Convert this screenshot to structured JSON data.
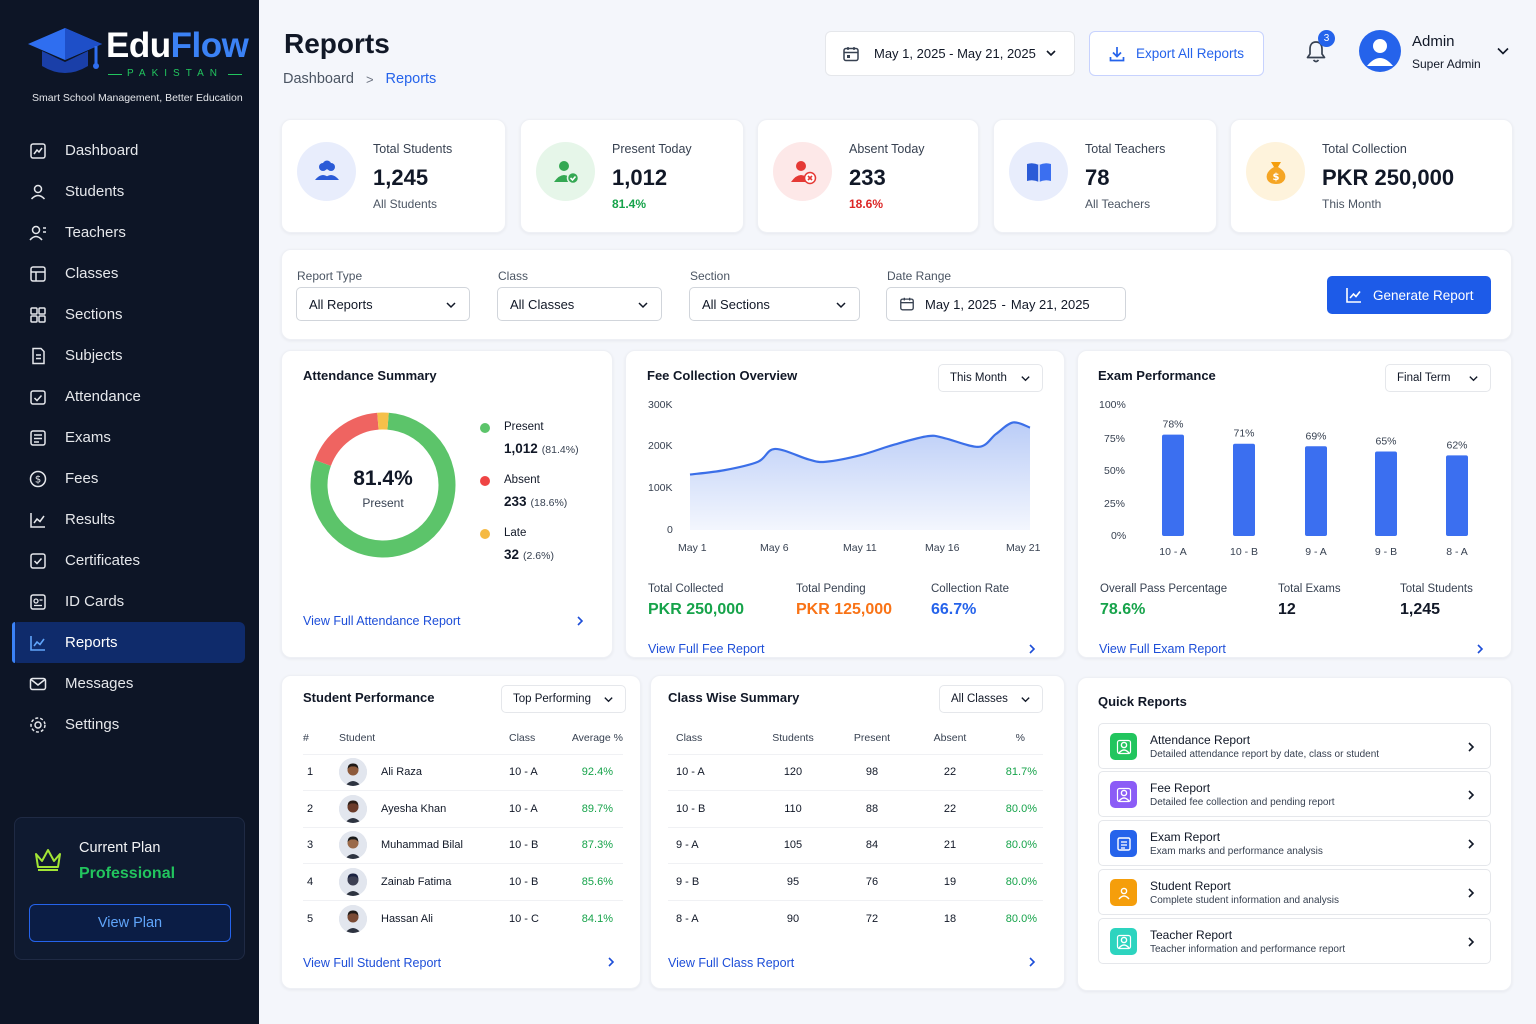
{
  "brand": {
    "name_part1": "Edu",
    "name_part2": "Flow",
    "country": "PAKISTAN",
    "tagline": "Smart School Management, Better Education"
  },
  "sidebar": {
    "items": [
      {
        "label": "Dashboard",
        "icon": "dashboard-icon"
      },
      {
        "label": "Students",
        "icon": "students-icon"
      },
      {
        "label": "Teachers",
        "icon": "teachers-icon"
      },
      {
        "label": "Classes",
        "icon": "classes-icon"
      },
      {
        "label": "Sections",
        "icon": "sections-icon"
      },
      {
        "label": "Subjects",
        "icon": "subjects-icon"
      },
      {
        "label": "Attendance",
        "icon": "attendance-icon"
      },
      {
        "label": "Exams",
        "icon": "exams-icon"
      },
      {
        "label": "Fees",
        "icon": "fees-icon"
      },
      {
        "label": "Results",
        "icon": "results-icon"
      },
      {
        "label": "Certificates",
        "icon": "certificates-icon"
      },
      {
        "label": "ID Cards",
        "icon": "id-cards-icon"
      },
      {
        "label": "Reports",
        "icon": "reports-icon",
        "active": true
      },
      {
        "label": "Messages",
        "icon": "messages-icon"
      },
      {
        "label": "Settings",
        "icon": "settings-icon"
      }
    ],
    "plan": {
      "title": "Current Plan",
      "name": "Professional",
      "button": "View Plan"
    }
  },
  "header": {
    "title": "Reports",
    "breadcrumb": {
      "home": "Dashboard",
      "current": "Reports"
    },
    "date_range": "May 1, 2025 - May 21, 2025",
    "export_label": "Export All Reports",
    "notification_count": "3",
    "user": {
      "name": "Admin",
      "role": "Super Admin"
    }
  },
  "stats": [
    {
      "label": "Total Students",
      "value": "1,245",
      "sub": "All Students",
      "color": "#2563eb"
    },
    {
      "label": "Present Today",
      "value": "1,012",
      "sub": "81.4%",
      "color": "#22c55e"
    },
    {
      "label": "Absent Today",
      "value": "233",
      "sub": "18.6%",
      "color": "#ef4444"
    },
    {
      "label": "Total Teachers",
      "value": "78",
      "sub": "All Teachers",
      "color": "#2563eb"
    },
    {
      "label": "Total Collection",
      "value": "PKR 250,000",
      "sub": "This Month",
      "color": "#f59e0b"
    }
  ],
  "filters": {
    "report_type": {
      "label": "Report Type",
      "value": "All Reports"
    },
    "class": {
      "label": "Class",
      "value": "All Classes"
    },
    "section": {
      "label": "Section",
      "value": "All Sections"
    },
    "date_range": {
      "label": "Date Range",
      "start": "May 1, 2025",
      "sep": "-",
      "end": "May 21, 2025"
    },
    "generate_label": "Generate Report"
  },
  "attendance": {
    "title": "Attendance Summary",
    "center_value": "81.4%",
    "center_label": "Present",
    "legend": [
      {
        "name": "Present",
        "value": "1,012",
        "pct": "(81.4%)",
        "color": "#5cc46a"
      },
      {
        "name": "Absent",
        "value": "233",
        "pct": "(18.6%)",
        "color": "#ef4444"
      },
      {
        "name": "Late",
        "value": "32",
        "pct": "(2.6%)",
        "color": "#f5b942"
      }
    ],
    "link": "View Full Attendance Report"
  },
  "fee": {
    "title": "Fee Collection Overview",
    "period": "This Month",
    "yticks": [
      "300K",
      "200K",
      "100K",
      "0"
    ],
    "xticks": [
      "May 1",
      "May 6",
      "May 11",
      "May 16",
      "May 21"
    ],
    "metrics": [
      {
        "label": "Total Collected",
        "value": "PKR 250,000",
        "color": "#16a34a"
      },
      {
        "label": "Total Pending",
        "value": "PKR 125,000",
        "color": "#f97316"
      },
      {
        "label": "Collection Rate",
        "value": "66.7%",
        "color": "#2563eb"
      }
    ],
    "link": "View Full Fee Report"
  },
  "exam": {
    "title": "Exam Performance",
    "term": "Final Term",
    "yticks": [
      "100%",
      "75%",
      "50%",
      "25%",
      "0%"
    ],
    "metrics": [
      {
        "label": "Overall Pass Percentage",
        "value": "78.6%",
        "color": "#16a34a"
      },
      {
        "label": "Total Exams",
        "value": "12",
        "color": "#111827"
      },
      {
        "label": "Total Students",
        "value": "1,245",
        "color": "#111827"
      }
    ],
    "link": "View Full Exam Report"
  },
  "student_perf": {
    "title": "Student Performance",
    "filter": "Top Performing",
    "headers": [
      "#",
      "Student",
      "Class",
      "Average %"
    ],
    "rows": [
      {
        "n": "1",
        "name": "Ali Raza",
        "cls": "10 - A",
        "avg": "92.4%"
      },
      {
        "n": "2",
        "name": "Ayesha Khan",
        "cls": "10 - A",
        "avg": "89.7%"
      },
      {
        "n": "3",
        "name": "Muhammad Bilal",
        "cls": "10 - B",
        "avg": "87.3%"
      },
      {
        "n": "4",
        "name": "Zainab Fatima",
        "cls": "10 - B",
        "avg": "85.6%"
      },
      {
        "n": "5",
        "name": "Hassan Ali",
        "cls": "10 - C",
        "avg": "84.1%"
      }
    ],
    "link": "View Full Student Report"
  },
  "class_summary": {
    "title": "Class Wise Summary",
    "filter": "All Classes",
    "headers": [
      "Class",
      "Students",
      "Present",
      "Absent",
      "%"
    ],
    "rows": [
      {
        "cls": "10 - A",
        "students": "120",
        "present": "98",
        "absent": "22",
        "pct": "81.7%"
      },
      {
        "cls": "10 - B",
        "students": "110",
        "present": "88",
        "absent": "22",
        "pct": "80.0%"
      },
      {
        "cls": "9 - A",
        "students": "105",
        "present": "84",
        "absent": "21",
        "pct": "80.0%"
      },
      {
        "cls": "9 - B",
        "students": "95",
        "present": "76",
        "absent": "19",
        "pct": "80.0%"
      },
      {
        "cls": "8 - A",
        "students": "90",
        "present": "72",
        "absent": "18",
        "pct": "80.0%"
      }
    ],
    "link": "View Full Class Report"
  },
  "quick_reports": {
    "title": "Quick Reports",
    "items": [
      {
        "title": "Attendance Report",
        "desc": "Detailed attendance report by date, class or student",
        "color": "#22c55e",
        "icon": "attendance-report-icon"
      },
      {
        "title": "Fee Report",
        "desc": "Detailed fee collection and pending report",
        "color": "#8b5cf6",
        "icon": "fee-report-icon"
      },
      {
        "title": "Exam Report",
        "desc": "Exam marks and performance analysis",
        "color": "#2563eb",
        "icon": "exam-report-icon"
      },
      {
        "title": "Student Report",
        "desc": "Complete student information and analysis",
        "color": "#f59e0b",
        "icon": "student-report-icon"
      },
      {
        "title": "Teacher Report",
        "desc": "Teacher information and performance report",
        "color": "#2dd4bf",
        "icon": "teacher-report-icon"
      }
    ]
  },
  "chart_data": [
    {
      "type": "pie",
      "title": "Attendance Summary",
      "categories": [
        "Present",
        "Absent",
        "Late"
      ],
      "values": [
        81.4,
        18.6,
        2.6
      ],
      "colors": [
        "#5cc46a",
        "#ef6461",
        "#f5c04a"
      ]
    },
    {
      "type": "area",
      "title": "Fee Collection Overview",
      "x": [
        "May 1",
        "May 3",
        "May 5",
        "May 6",
        "May 8",
        "May 9",
        "May 11",
        "May 13",
        "May 15",
        "May 16",
        "May 18",
        "May 19",
        "May 20",
        "May 21"
      ],
      "y": [
        130000,
        140000,
        160000,
        190000,
        165000,
        160000,
        175000,
        200000,
        220000,
        215000,
        195000,
        225000,
        252000,
        240000
      ],
      "ylim": [
        0,
        300000
      ],
      "xticks": [
        "May 1",
        "May 6",
        "May 11",
        "May 16",
        "May 21"
      ],
      "yticks": [
        "300K",
        "200K",
        "100K",
        "0"
      ],
      "color": "#3b6fe8"
    },
    {
      "type": "bar",
      "title": "Exam Performance",
      "categories": [
        "10 - A",
        "10 - B",
        "9 - A",
        "9 - B",
        "8 - A"
      ],
      "values": [
        78,
        71,
        69,
        65,
        62
      ],
      "labels": [
        "78%",
        "71%",
        "69%",
        "65%",
        "62%"
      ],
      "ylim": [
        0,
        100
      ],
      "yticks": [
        "100%",
        "75%",
        "50%",
        "25%",
        "0%"
      ],
      "color": "#3b6ff0"
    }
  ]
}
